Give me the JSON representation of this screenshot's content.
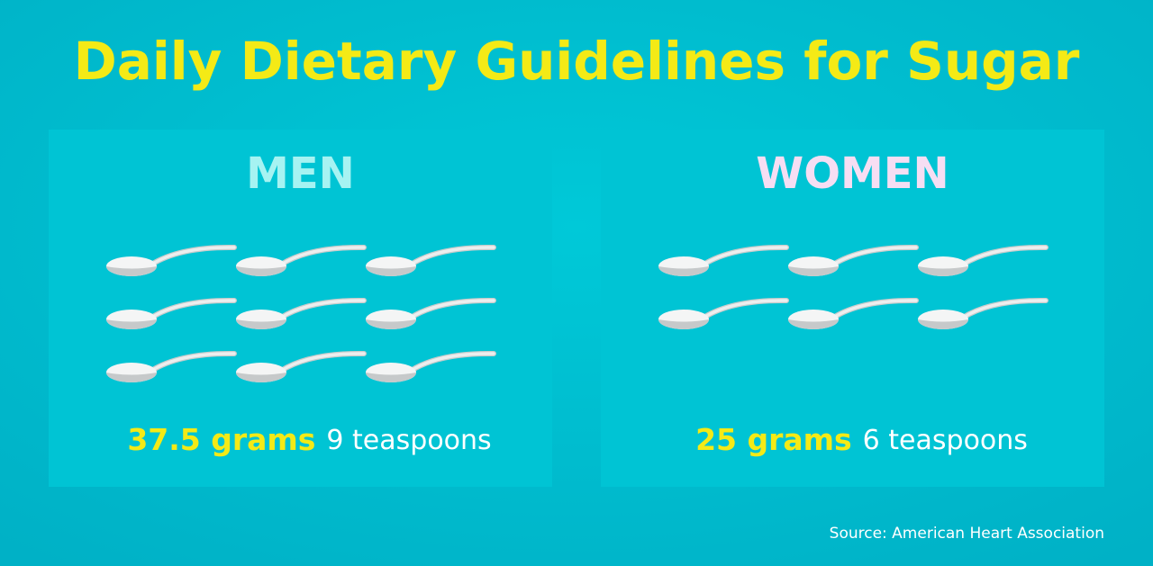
{
  "title": "Daily Dietary Guidelines for Sugar",
  "panels": [
    {
      "heading": "MEN",
      "heading_color": "#a6f3f2",
      "teaspoons": 9,
      "amount_label": "37.5 grams",
      "teaspoons_label": "9 teaspoons"
    },
    {
      "heading": "WOMEN",
      "heading_color": "#f6def3",
      "teaspoons": 6,
      "amount_label": "25 grams",
      "teaspoons_label": "6 teaspoons"
    }
  ],
  "source": "Source: American Heart Association"
}
